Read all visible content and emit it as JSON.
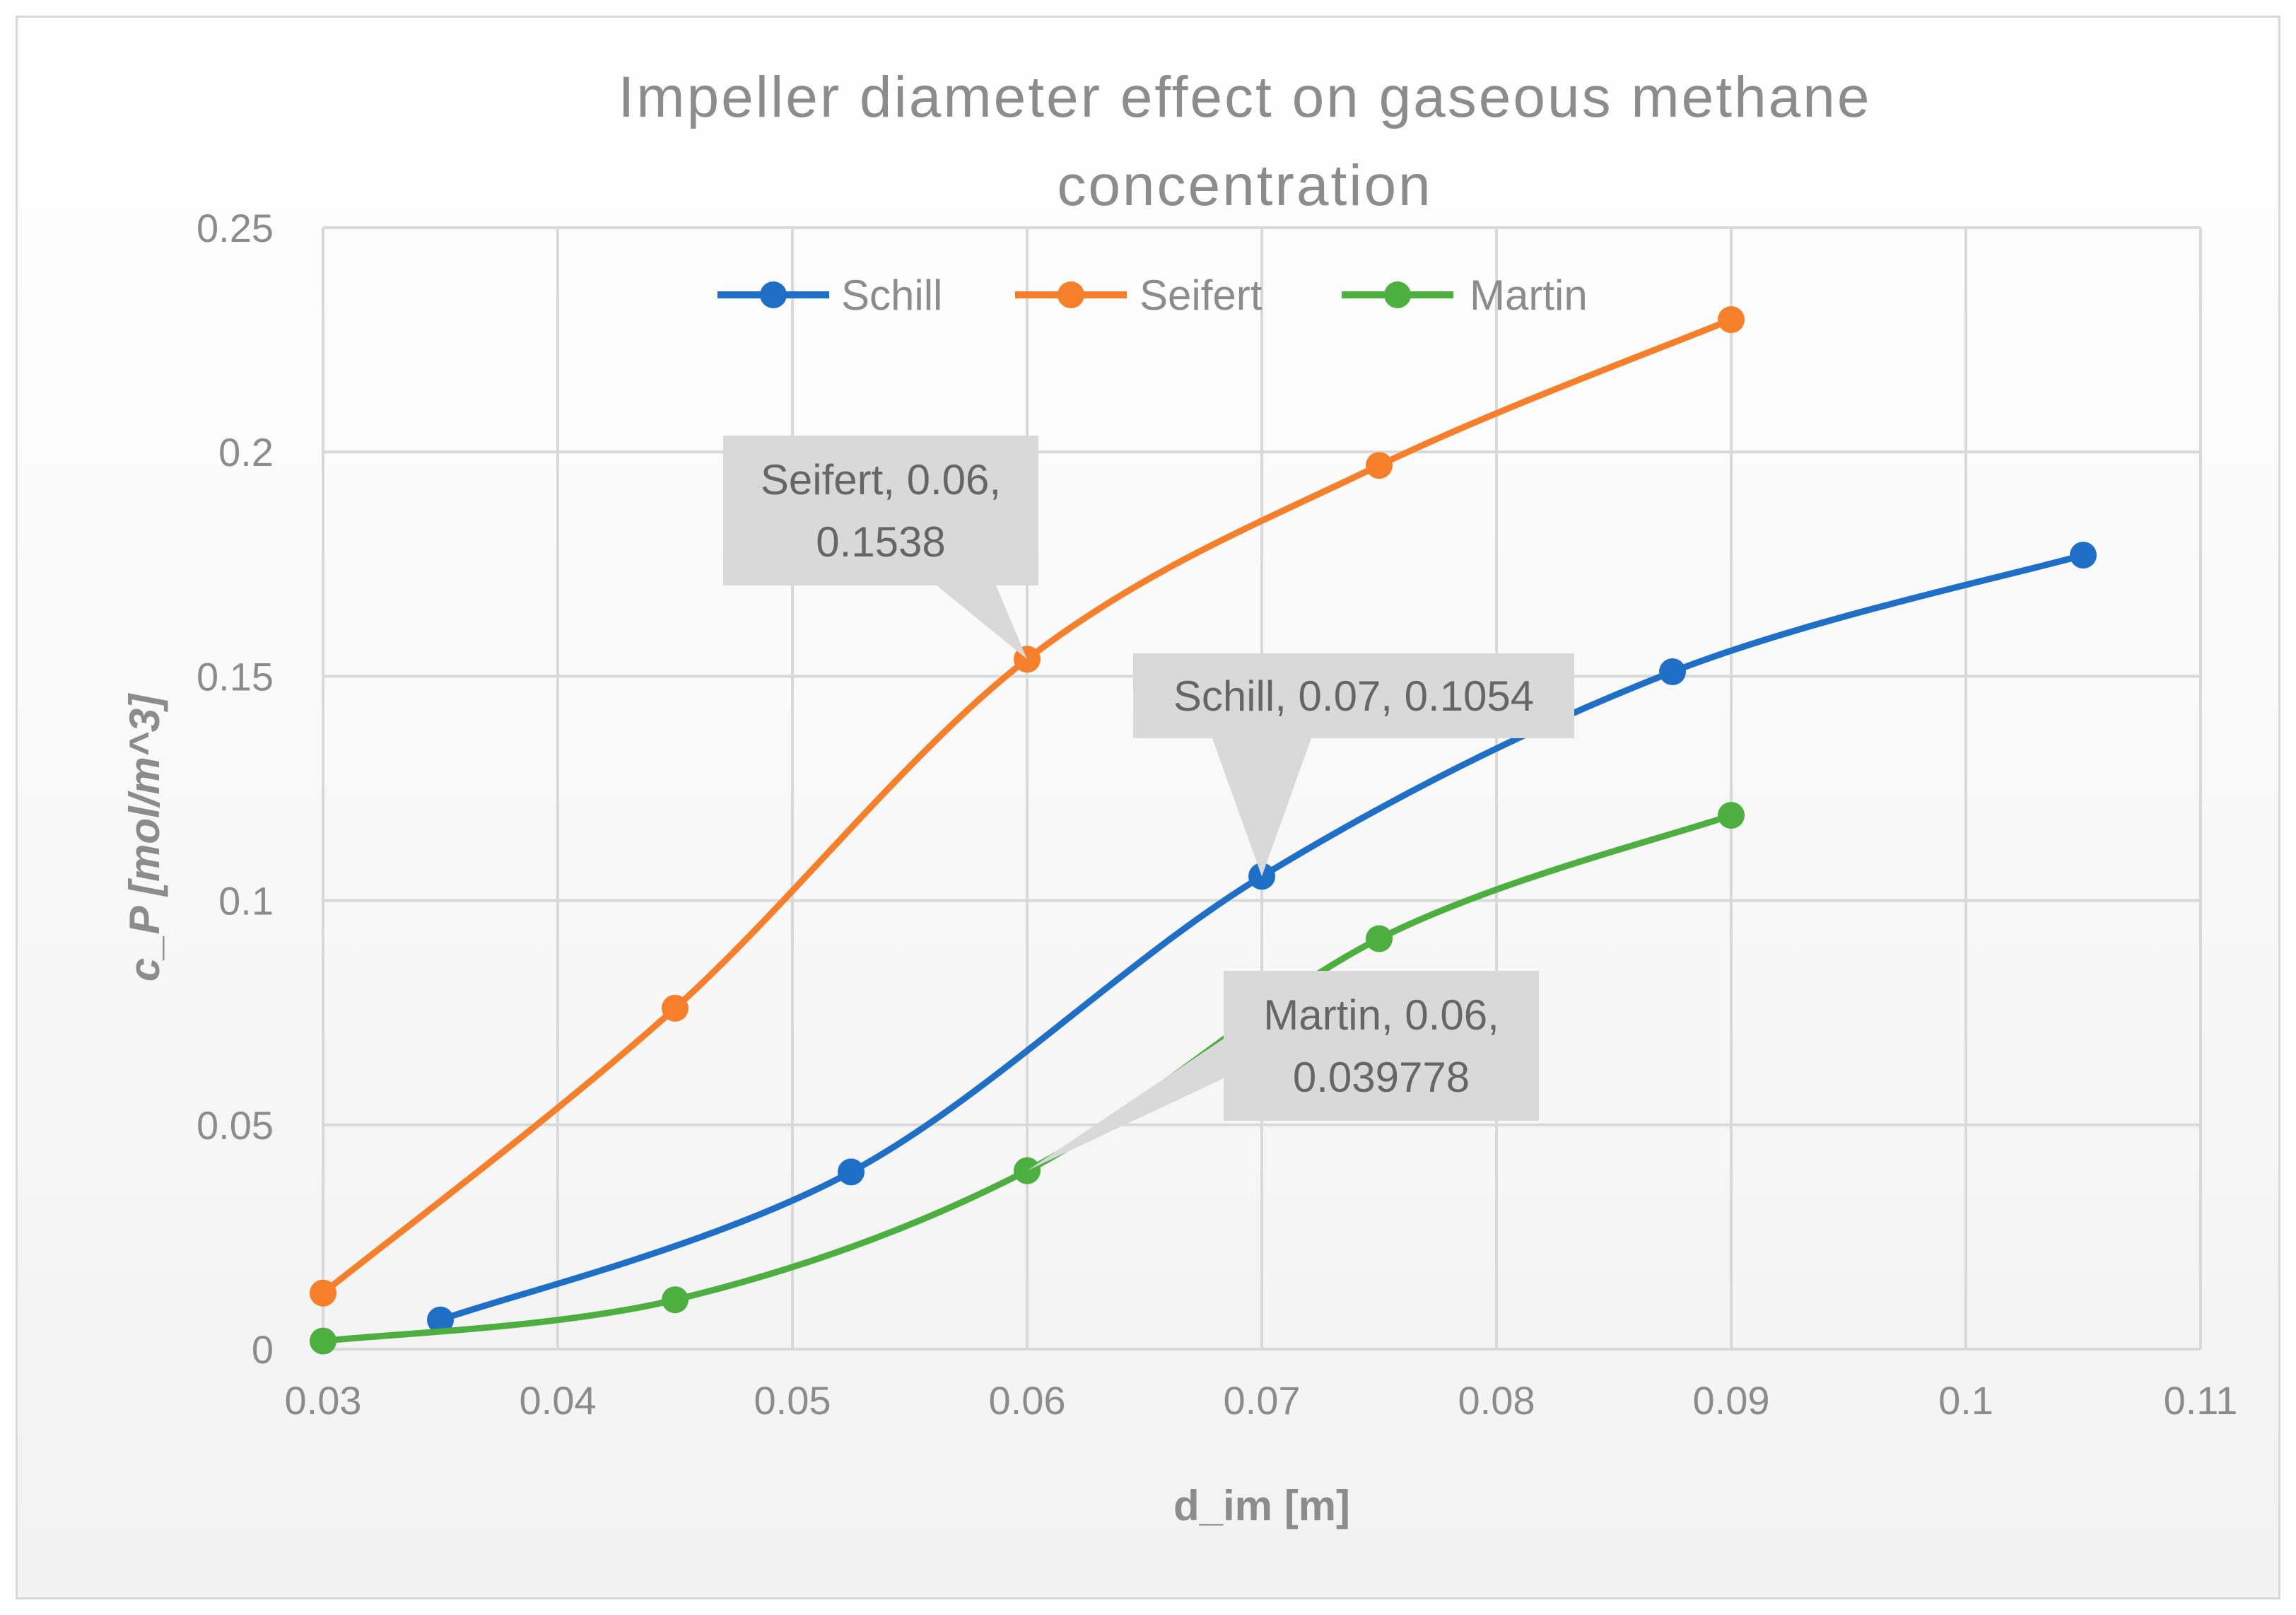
{
  "chart_data": {
    "type": "line",
    "title": "Impeller diameter effect on gaseous methane concentration",
    "title_lines": [
      "Impeller diameter effect on gaseous methane",
      "concentration"
    ],
    "xlabel": "d_im [m]",
    "ylabel": "c_P [mol/m^3]",
    "xlim": [
      0.03,
      0.11
    ],
    "ylim": [
      0,
      0.25
    ],
    "x_ticks": [
      0.03,
      0.04,
      0.05,
      0.06,
      0.07,
      0.08,
      0.09,
      0.1,
      0.11
    ],
    "x_tick_labels": [
      "0.03",
      "0.04",
      "0.05",
      "0.06",
      "0.07",
      "0.08",
      "0.09",
      "0.1",
      "0.11"
    ],
    "y_ticks": [
      0,
      0.05,
      0.1,
      0.15,
      0.2,
      0.25
    ],
    "y_tick_labels": [
      "0",
      "0.05",
      "0.1",
      "0.15",
      "0.2",
      "0.25"
    ],
    "grid": true,
    "legend_position": "top",
    "smoothed": true,
    "series": [
      {
        "name": "Schill",
        "color": "#1f6fc6",
        "x": [
          0.035,
          0.0525,
          0.07,
          0.0875,
          0.105
        ],
        "y": [
          0.0065,
          0.0395,
          0.1054,
          0.151,
          0.177
        ]
      },
      {
        "name": "Seifert",
        "color": "#f57f2a",
        "x": [
          0.03,
          0.045,
          0.06,
          0.075,
          0.09
        ],
        "y": [
          0.0125,
          0.076,
          0.1538,
          0.197,
          0.2295
        ]
      },
      {
        "name": "Martin",
        "color": "#4caf3f",
        "x": [
          0.03,
          0.045,
          0.06,
          0.075,
          0.09
        ],
        "y": [
          0.0018,
          0.011,
          0.039778,
          0.0915,
          0.119
        ]
      }
    ],
    "annotations": [
      {
        "series": "Seifert",
        "x": 0.06,
        "y": 0.1538,
        "lines": [
          "Seifert, 0.06,",
          "0.1538"
        ]
      },
      {
        "series": "Schill",
        "x": 0.07,
        "y": 0.1054,
        "lines": [
          "Schill, 0.07, 0.1054"
        ]
      },
      {
        "series": "Martin",
        "x": 0.06,
        "y": 0.039778,
        "lines": [
          "Martin, 0.06,",
          "0.039778"
        ]
      }
    ]
  }
}
